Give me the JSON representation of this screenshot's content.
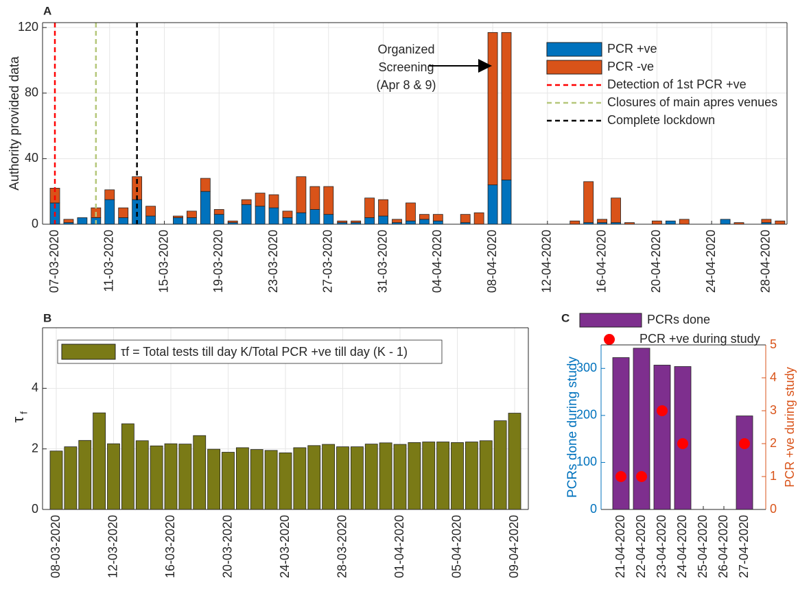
{
  "chart_data": [
    {
      "type": "stacked_bar",
      "panel_label": "A",
      "ylabel": "Authority provided data",
      "categories": [
        "07-03-2020",
        null,
        null,
        null,
        "11-03-2020",
        null,
        null,
        null,
        "15-03-2020",
        null,
        null,
        null,
        "19-03-2020",
        null,
        null,
        null,
        "23-03-2020",
        null,
        null,
        null,
        "27-03-2020",
        null,
        null,
        null,
        "31-03-2020",
        null,
        null,
        null,
        "04-04-2020",
        null,
        null,
        null,
        "08-04-2020",
        null,
        null,
        null,
        "12-04-2020",
        null,
        null,
        null,
        "16-04-2020",
        null,
        null,
        null,
        "20-04-2020",
        null,
        null,
        null,
        "24-04-2020",
        null,
        null,
        null,
        "28-04-2020",
        null
      ],
      "series": [
        {
          "name": "PCR +ve",
          "color": "#0072BD",
          "values": [
            13,
            1,
            4,
            4,
            15,
            4,
            15,
            5,
            0,
            4,
            4,
            20,
            6,
            1,
            12,
            11,
            10,
            4,
            7,
            9,
            6,
            1,
            1,
            4,
            5,
            1,
            2,
            3,
            2,
            0,
            1,
            0,
            24,
            27,
            0,
            0,
            0,
            0,
            0,
            1,
            1,
            1,
            0,
            0,
            0,
            2,
            0,
            0,
            0,
            3,
            0,
            0,
            1,
            0
          ]
        },
        {
          "name": "PCR -ve",
          "color": "#D95319",
          "values": [
            9,
            2,
            0,
            6,
            6,
            6,
            14,
            6,
            0,
            1,
            4,
            8,
            3,
            1,
            3,
            8,
            8,
            4,
            22,
            14,
            17,
            1,
            1,
            12,
            10,
            2,
            11,
            3,
            4,
            0,
            5,
            7,
            93,
            90,
            0,
            0,
            0,
            0,
            2,
            25,
            2,
            15,
            1,
            0,
            2,
            0,
            3,
            0,
            0,
            0,
            1,
            0,
            2,
            2
          ]
        }
      ],
      "reference_lines": [
        {
          "name": "Detection of 1st PCR +ve",
          "color": "#FF0000",
          "x": 0
        },
        {
          "name": "Closures of main apres venues",
          "color": "#B5C77A",
          "x": 3
        },
        {
          "name": "Complete lockdown",
          "color": "#000000",
          "x": 6
        }
      ],
      "annotation": {
        "lines": [
          "Organized",
          "Screening",
          "(Apr 8 & 9)"
        ]
      },
      "ylim": [
        0,
        123
      ],
      "yticks": [
        0,
        40,
        80,
        120
      ],
      "grid": true
    },
    {
      "type": "bar",
      "panel_label": "B",
      "ylabel": {
        "symbol": "τ",
        "subscript": "f"
      },
      "categories": [
        "08-03-2020",
        null,
        null,
        null,
        "12-03-2020",
        null,
        null,
        null,
        "16-03-2020",
        null,
        null,
        null,
        "20-03-2020",
        null,
        null,
        null,
        "24-03-2020",
        null,
        null,
        null,
        "28-03-2020",
        null,
        null,
        null,
        "01-04-2020",
        null,
        null,
        null,
        "05-04-2020",
        null,
        null,
        null,
        "09-04-2020"
      ],
      "series": [
        {
          "name": "τf = Total tests till day K/Total PCR +ve till day (K - 1)",
          "color": "#7A7A16",
          "values": [
            1.93,
            2.07,
            2.28,
            3.19,
            2.17,
            2.83,
            2.27,
            2.1,
            2.17,
            2.16,
            2.44,
            1.99,
            1.89,
            2.04,
            1.98,
            1.95,
            1.87,
            2.04,
            2.11,
            2.15,
            2.07,
            2.07,
            2.16,
            2.2,
            2.15,
            2.21,
            2.23,
            2.23,
            2.21,
            2.23,
            2.27,
            2.93,
            3.18
          ]
        }
      ],
      "ylim": [
        0,
        6
      ],
      "yticks": [
        0,
        2,
        4
      ],
      "grid": true
    },
    {
      "type": "bar_scatter",
      "panel_label": "C",
      "ylabel": "PCRs done during study",
      "y2label": "PCR +ve during study",
      "y_axis_color": "#0072BD",
      "y2_axis_color": "#D95319",
      "categories": [
        "21-04-2020",
        "22-04-2020",
        "23-04-2020",
        "24-04-2020",
        "25-04-2020",
        "26-04-2020",
        "27-04-2020"
      ],
      "series": [
        {
          "name": "PCRs done",
          "color": "#7E2F8E",
          "values": [
            323,
            343,
            307,
            304,
            null,
            null,
            199
          ]
        },
        {
          "name": "PCR +ve during study",
          "color": "#FF0000",
          "axis": "y2",
          "values": [
            1,
            1,
            3,
            2,
            null,
            null,
            2
          ]
        }
      ],
      "ylim": [
        0,
        350
      ],
      "yticks": [
        0,
        100,
        200,
        300
      ],
      "y2lim": [
        0,
        5
      ],
      "y2ticks": [
        0,
        1,
        2,
        3,
        4,
        5
      ],
      "grid": false
    }
  ]
}
